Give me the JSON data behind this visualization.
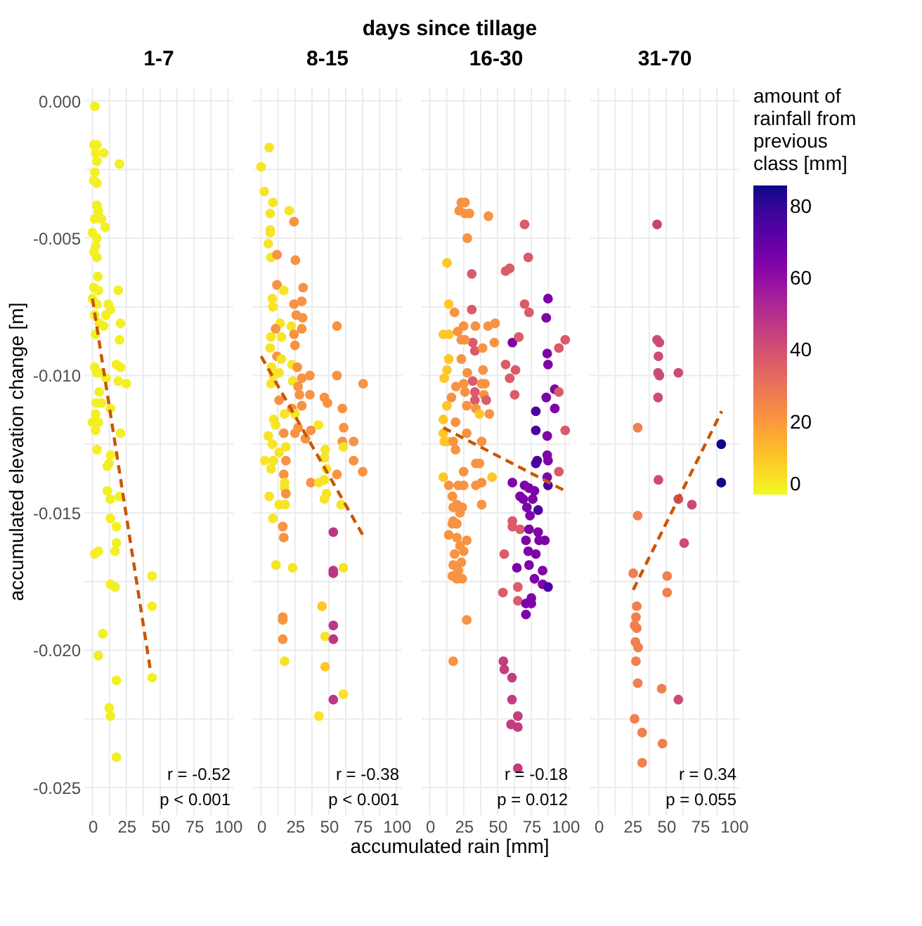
{
  "chart_data": [
    {
      "type": "scatter",
      "title": "1-7",
      "ylabel": "accumulated elevation change [m]",
      "xlabel": "accumulated rain [mm]",
      "annotations": [
        "days since tillage",
        "r = -0.52",
        "p < 0.001"
      ],
      "marker": "circle",
      "grid": true,
      "xlim": [
        -6,
        104
      ],
      "ylim": [
        -0.026,
        0.0005
      ],
      "xticks": [
        0,
        {
          "value": 12.5,
          "label": null
        },
        25,
        {
          "value": 37.5,
          "label": null
        },
        50,
        {
          "value": 62.5,
          "label": null
        },
        75,
        {
          "value": 87.5,
          "label": null
        },
        100
      ],
      "yticks": [
        {
          "value": 0,
          "label": "0.000"
        },
        {
          "value": -0.0025,
          "label": null
        },
        -0.005,
        {
          "value": -0.0075,
          "label": null
        },
        {
          "value": -0.01,
          "label": "-0.010"
        },
        {
          "value": -0.0125,
          "label": null
        },
        -0.015,
        {
          "value": -0.0175,
          "label": null
        },
        {
          "value": -0.02,
          "label": "-0.020"
        },
        {
          "value": -0.0225,
          "label": null
        },
        -0.025
      ],
      "series": [
        {
          "type": "scatter",
          "color": "#f3ef25",
          "x": [
            1.7,
            1,
            3.3,
            2.3,
            8.3,
            3.3,
            20,
            1.7,
            1,
            3.3,
            3.3,
            4.3,
            1.7,
            6.7,
            9.3,
            0,
            3.3,
            2.3,
            1,
            3.3,
            4,
            1,
            4.3,
            19,
            0,
            11.7,
            3.3,
            13.3,
            1.7,
            10,
            5,
            20.7,
            8.3,
            2.3,
            20,
            1.7,
            3.3,
            17.7,
            20.7,
            5,
            10,
            19,
            25,
            5,
            2.7,
            6.7,
            13.3,
            2.3,
            0,
            4.3,
            2.3,
            20.7,
            3.3,
            13.3,
            11,
            12.3,
            11,
            13.3,
            20,
            13.3,
            17.7,
            1.7,
            4.3,
            17.7,
            16.7,
            13.3,
            16.7,
            44,
            44,
            7.7,
            4.3,
            17.7,
            44,
            12.3,
            13.3,
            17.7
          ],
          "values": [
            -0.0002,
            -0.0016,
            -0.0016,
            -0.0019,
            -0.0019,
            -0.0022,
            -0.0023,
            -0.0026,
            -0.0029,
            -0.003,
            -0.0038,
            -0.004,
            -0.0043,
            -0.0043,
            -0.0046,
            -0.0048,
            -0.005,
            -0.0053,
            -0.0055,
            -0.0057,
            -0.0064,
            -0.0068,
            -0.0069,
            -0.0069,
            -0.0072,
            -0.0074,
            -0.0074,
            -0.0076,
            -0.0078,
            -0.0078,
            -0.0081,
            -0.0081,
            -0.0082,
            -0.0085,
            -0.0087,
            -0.0097,
            -0.0099,
            -0.0096,
            -0.0097,
            -0.0099,
            -0.0101,
            -0.0102,
            -0.0103,
            -0.0106,
            -0.011,
            -0.011,
            -0.0112,
            -0.0114,
            -0.0117,
            -0.0117,
            -0.012,
            -0.0121,
            -0.0127,
            -0.0129,
            -0.0133,
            -0.0132,
            -0.0142,
            -0.0145,
            -0.0144,
            -0.0152,
            -0.0155,
            -0.0165,
            -0.0164,
            -0.0161,
            -0.0164,
            -0.0176,
            -0.0177,
            -0.0173,
            -0.0184,
            -0.0194,
            -0.0202,
            -0.0211,
            -0.021,
            -0.0221,
            -0.0224,
            -0.0239
          ]
        },
        {
          "type": "line",
          "color": "#cc5500",
          "line_style": "dashed",
          "marker": "none",
          "x": [
            0,
            42.7
          ],
          "values": [
            -0.0072,
            -0.0207
          ]
        }
      ]
    },
    {
      "type": "scatter",
      "title": "8-15",
      "annotations": [
        "r = -0.38",
        "p < 0.001"
      ],
      "marker": "circle",
      "grid": true,
      "tick_labels": "x",
      "xlim": [
        -6,
        104
      ],
      "ylim": [
        -0.026,
        0.0005
      ],
      "xticks": [
        0,
        {
          "value": 12.5,
          "label": null
        },
        25,
        {
          "value": 37.5,
          "label": null
        },
        50,
        {
          "value": 62.5,
          "label": null
        },
        75,
        {
          "value": 87.5,
          "label": null
        },
        100
      ],
      "yticks": [
        0,
        -0.0025,
        -0.005,
        -0.0075,
        -0.01,
        -0.0125,
        -0.015,
        -0.0175,
        -0.02,
        -0.0225,
        -0.025
      ],
      "series": [
        {
          "type": "scatter",
          "x": [
            6,
            0,
            2.3,
            8.7,
            6.7,
            20.7,
            24.3,
            6.7,
            6.7,
            5.3,
            7.3,
            11.7,
            25.3,
            11.7,
            16.7,
            31,
            8.3,
            8.7,
            24.3,
            30,
            26,
            30.7,
            14,
            22.3,
            30,
            10.7,
            7.3,
            15,
            24.3,
            25,
            6.7,
            11.7,
            15,
            7.7,
            22.7,
            26.7,
            30,
            36,
            56,
            75.3,
            9,
            13.3,
            23.3,
            7.3,
            27.3,
            28.3,
            36,
            46.7,
            49,
            13.3,
            22.7,
            30,
            56,
            60,
            9.3,
            17.3,
            25,
            42.3,
            27.3,
            61,
            36.7,
            5.3,
            10.7,
            16.7,
            25,
            32.7,
            60,
            68.3,
            8.3,
            13.3,
            18.3,
            60.7,
            47.3,
            2.7,
            9,
            18.3,
            46.7,
            68.3,
            7.3,
            16.7,
            48.3,
            56,
            75,
            17.3,
            36.7,
            42.7,
            46.7,
            17.3,
            48.3,
            46.7,
            18.3,
            6,
            13.3,
            17.7,
            59,
            16,
            8.7,
            53.3,
            16.7,
            11,
            23.3,
            53.3,
            53.3,
            60.7,
            45,
            16,
            16,
            53.3,
            47.3,
            53.3,
            16,
            17.3,
            47.3,
            60.7,
            53.3,
            42.7
          ],
          "values": [
            -0.0017,
            -0.0024,
            -0.0033,
            -0.0037,
            -0.0041,
            -0.004,
            -0.0044,
            -0.0047,
            -0.0048,
            -0.0052,
            -0.0057,
            -0.0056,
            -0.0058,
            -0.0067,
            -0.0069,
            -0.0068,
            -0.0072,
            -0.0075,
            -0.0074,
            -0.0073,
            -0.0078,
            -0.0079,
            -0.0081,
            -0.0082,
            -0.0083,
            -0.0083,
            -0.0086,
            -0.0086,
            -0.0085,
            -0.0089,
            -0.009,
            -0.0093,
            -0.0094,
            -0.0097,
            -0.0096,
            -0.0097,
            -0.0101,
            -0.01,
            -0.01,
            -0.0103,
            -0.01,
            -0.0099,
            -0.0102,
            -0.0103,
            -0.0104,
            -0.0107,
            -0.0107,
            -0.0108,
            -0.011,
            -0.0109,
            -0.0112,
            -0.0111,
            -0.0082,
            -0.0112,
            -0.0116,
            -0.0114,
            -0.0114,
            -0.0118,
            -0.0119,
            -0.0119,
            -0.012,
            -0.0122,
            -0.0118,
            -0.0121,
            -0.0121,
            -0.0123,
            -0.0124,
            -0.0124,
            -0.0125,
            -0.0128,
            -0.0126,
            -0.0126,
            -0.0127,
            -0.0131,
            -0.0131,
            -0.0131,
            -0.013,
            -0.0131,
            -0.0134,
            -0.0136,
            -0.0134,
            -0.0136,
            -0.0135,
            -0.0139,
            -0.0139,
            -0.0139,
            -0.0138,
            -0.0141,
            -0.0143,
            -0.0145,
            -0.0143,
            -0.0144,
            -0.0147,
            -0.0147,
            -0.0147,
            -0.0155,
            -0.0152,
            -0.0157,
            -0.0159,
            -0.0169,
            -0.017,
            -0.0171,
            -0.0172,
            -0.017,
            -0.0184,
            -0.0188,
            -0.0189,
            -0.0191,
            -0.0195,
            -0.0196,
            -0.0196,
            -0.0204,
            -0.0206,
            -0.0216,
            -0.0218,
            -0.0224
          ],
          "colors": [
            "#f7e426",
            "#f7e426",
            "#f7e426",
            "#f7e426",
            "#f7e426",
            "#f7e426",
            "#f79342",
            "#f7e426",
            "#f7e426",
            "#f7e426",
            "#f7e426",
            "#f79342",
            "#f79342",
            "#f79342",
            "#f7e426",
            "#f79342",
            "#f7e426",
            "#f7e426",
            "#f79342",
            "#f79342",
            "#f79342",
            "#f79342",
            "#f7e426",
            "#f7e426",
            "#f79342",
            "#f79342",
            "#f7e426",
            "#f7e426",
            "#f79342",
            "#f79342",
            "#f7e426",
            "#f79342",
            "#f7e426",
            "#f7e426",
            "#f7e426",
            "#f79342",
            "#f79342",
            "#f79342",
            "#f79342",
            "#f79342",
            "#f7e426",
            "#f7e426",
            "#f7e426",
            "#f7e426",
            "#f79342",
            "#f79342",
            "#f79342",
            "#f79342",
            "#f79342",
            "#f79342",
            "#f79342",
            "#f79342",
            "#f79342",
            "#f79342",
            "#f7e426",
            "#f7e426",
            "#f7e426",
            "#f7e426",
            "#f79342",
            "#f79342",
            "#f79342",
            "#f7e426",
            "#f7e426",
            "#f79342",
            "#f79342",
            "#f79342",
            "#f79342",
            "#f79342",
            "#f7e426",
            "#f7e426",
            "#f7e426",
            "#f7e426",
            "#f7e426",
            "#f7e426",
            "#f7e426",
            "#f79342",
            "#f7e426",
            "#f79342",
            "#f7e426",
            "#f79342",
            "#f7e426",
            "#f79342",
            "#f79342",
            "#f7e426",
            "#f79342",
            "#f7e426",
            "#f7e426",
            "#f7e426",
            "#f7e426",
            "#f7e426",
            "#f79342",
            "#f7e426",
            "#f7e426",
            "#f7e426",
            "#f7e426",
            "#f79342",
            "#f7e426",
            "#bc3686",
            "#f79342",
            "#f7e426",
            "#f7e426",
            "#bc3686",
            "#bc3686",
            "#f7e426",
            "#fdc727",
            "#f79342",
            "#f79342",
            "#bc3686",
            "#f7e426",
            "#bc3686",
            "#f79342",
            "#f7e426",
            "#fdc727",
            "#f7e426",
            "#bc3686",
            "#f7e426"
          ]
        },
        {
          "type": "line",
          "color": "#cc5500",
          "line_style": "dashed",
          "marker": "none",
          "x": [
            0,
            75
          ],
          "values": [
            -0.0093,
            -0.0158
          ]
        }
      ]
    },
    {
      "type": "scatter",
      "title": "16-30",
      "annotations": [
        "r = -0.18",
        "p = 0.012"
      ],
      "marker": "circle",
      "grid": true,
      "tick_labels": "x",
      "xlim": [
        -6,
        104
      ],
      "ylim": [
        -0.026,
        0.0005
      ],
      "xticks": [
        0,
        {
          "value": 12.5,
          "label": null
        },
        25,
        {
          "value": 37.5,
          "label": null
        },
        50,
        {
          "value": 62.5,
          "label": null
        },
        75,
        {
          "value": 87.5,
          "label": null
        },
        100
      ],
      "yticks": [
        0,
        -0.0025,
        -0.005,
        -0.0075,
        -0.01,
        -0.0125,
        -0.015,
        -0.0175,
        -0.02,
        -0.0225,
        -0.025
      ],
      "series": [
        {
          "type": "scatter",
          "x": [
            23.3,
            26,
            21.7,
            26,
            29.3,
            43.3,
            70,
            27.7,
            12.7,
            72.7,
            31,
            56,
            59,
            14,
            70,
            18.3,
            73.3,
            87.3,
            86,
            31,
            10,
            14.3,
            25,
            33.7,
            43,
            48.3,
            20.7,
            23.3,
            31.7,
            26,
            61,
            65.7,
            47.7,
            33.3,
            39,
            100,
            95.3,
            86.7,
            87.3,
            14,
            23.3,
            12.7,
            10.7,
            27.7,
            39.3,
            56,
            63.3,
            59,
            19.3,
            25,
            31.7,
            38.3,
            40.7,
            33.3,
            26,
            40,
            16,
            33.3,
            41.7,
            62.7,
            86,
            92.3,
            95.3,
            12.7,
            27.3,
            34,
            44,
            36.7,
            92.3,
            78.3,
            10,
            19,
            78.3,
            86.7,
            100,
            10,
            10.7,
            13.3,
            17.3,
            27.3,
            38.3,
            19,
            86.7,
            79.3,
            78.3,
            87.3,
            36.7,
            34,
            10,
            46,
            25,
            95.3,
            86.7,
            61,
            14,
            21,
            25,
            34,
            38.3,
            70,
            73.3,
            77.3,
            87.3,
            66.7,
            69,
            76,
            16.7,
            20,
            17.3,
            24,
            38.3,
            22.3,
            71.7,
            80,
            74,
            17.3,
            20,
            16.7,
            61,
            61,
            66.7,
            73.3,
            80,
            14,
            20,
            27.3,
            22.3,
            25,
            18.3,
            71,
            80.7,
            85,
            72.7,
            78.3,
            55,
            23.3,
            17.3,
            21,
            64.3,
            83.3,
            73.3,
            16.7,
            20,
            24,
            77.3,
            54,
            65,
            83.3,
            87.3,
            65,
            71,
            75,
            75,
            71,
            27.3,
            17.3,
            54.3,
            55,
            60.7,
            60.7,
            65,
            60,
            65,
            65
          ],
          "values": [
            -0.0037,
            -0.0037,
            -0.004,
            -0.0041,
            -0.0041,
            -0.0042,
            -0.0045,
            -0.005,
            -0.0059,
            -0.0057,
            -0.0063,
            -0.0062,
            -0.0061,
            -0.0074,
            -0.0074,
            -0.0077,
            -0.0077,
            -0.0072,
            -0.0079,
            -0.0076,
            -0.0085,
            -0.0085,
            -0.0082,
            -0.0082,
            -0.0082,
            -0.0081,
            -0.0084,
            -0.0087,
            -0.0088,
            -0.0087,
            -0.0088,
            -0.0086,
            -0.0088,
            -0.0091,
            -0.009,
            -0.0087,
            -0.009,
            -0.0092,
            -0.0096,
            -0.0094,
            -0.0094,
            -0.0098,
            -0.0101,
            -0.0099,
            -0.0098,
            -0.0096,
            -0.0098,
            -0.0101,
            -0.0104,
            -0.0103,
            -0.0102,
            -0.0103,
            -0.0103,
            -0.0106,
            -0.0106,
            -0.0107,
            -0.0108,
            -0.0109,
            -0.0109,
            -0.0107,
            -0.0108,
            -0.0105,
            -0.0106,
            -0.0111,
            -0.0111,
            -0.0112,
            -0.0114,
            -0.0114,
            -0.0112,
            -0.0113,
            -0.0116,
            -0.0117,
            -0.012,
            -0.0122,
            -0.012,
            -0.0121,
            -0.0124,
            -0.0124,
            -0.0124,
            -0.0121,
            -0.0124,
            -0.0127,
            -0.0129,
            -0.0131,
            -0.0132,
            -0.0131,
            -0.0132,
            -0.0132,
            -0.0137,
            -0.0137,
            -0.0135,
            -0.0135,
            -0.0137,
            -0.0139,
            -0.014,
            -0.014,
            -0.014,
            -0.014,
            -0.0139,
            -0.014,
            -0.0141,
            -0.0142,
            -0.014,
            -0.0144,
            -0.0145,
            -0.0145,
            -0.0144,
            -0.0147,
            -0.0148,
            -0.0148,
            -0.0147,
            -0.015,
            -0.0148,
            -0.0149,
            -0.0151,
            -0.0153,
            -0.0154,
            -0.0154,
            -0.0153,
            -0.0155,
            -0.0156,
            -0.0156,
            -0.0157,
            -0.0158,
            -0.0159,
            -0.016,
            -0.0162,
            -0.0164,
            -0.0165,
            -0.016,
            -0.016,
            -0.016,
            -0.0164,
            -0.0165,
            -0.0165,
            -0.0168,
            -0.0169,
            -0.0171,
            -0.017,
            -0.0171,
            -0.0169,
            -0.0173,
            -0.0174,
            -0.0174,
            -0.0174,
            -0.0179,
            -0.0177,
            -0.0176,
            -0.0177,
            -0.0182,
            -0.0183,
            -0.0183,
            -0.0181,
            -0.0187,
            -0.0189,
            -0.0204,
            -0.0204,
            -0.0207,
            -0.021,
            -0.0218,
            -0.0224,
            -0.0227,
            -0.0228,
            -0.0243
          ],
          "colors": [
            "#f79342",
            "#f79342",
            "#f79342",
            "#f79342",
            "#f79342",
            "#f79342",
            "#da5b69",
            "#f79342",
            "#fdc727",
            "#da5b69",
            "#da5b69",
            "#da5b69",
            "#da5b69",
            "#fdc727",
            "#da5b69",
            "#f79342",
            "#da5b69",
            "#7e03a8",
            "#7e03a8",
            "#da5b69",
            "#fdc727",
            "#fdc727",
            "#f79342",
            "#f79342",
            "#f79342",
            "#f79342",
            "#f79342",
            "#f79342",
            "#da5b69",
            "#f79342",
            "#7e03a8",
            "#da5b69",
            "#f79342",
            "#da5b69",
            "#f79342",
            "#da5b69",
            "#da5b69",
            "#7e03a8",
            "#7e03a8",
            "#fdc727",
            "#f79342",
            "#fdc727",
            "#fdc727",
            "#f79342",
            "#f79342",
            "#da5b69",
            "#da5b69",
            "#da5b69",
            "#f79342",
            "#f79342",
            "#da5b69",
            "#f79342",
            "#f79342",
            "#da5b69",
            "#f79342",
            "#f79342",
            "#f79342",
            "#da5b69",
            "#da5b69",
            "#da5b69",
            "#7e03a8",
            "#7e03a8",
            "#da5b69",
            "#fdc727",
            "#f79342",
            "#f79342",
            "#f79342",
            "#fdc727",
            "#7e03a8",
            "#4c02a1",
            "#fdc727",
            "#f79342",
            "#4c02a1",
            "#7e03a8",
            "#da5b69",
            "#fdc727",
            "#fdc727",
            "#fdc727",
            "#f79342",
            "#f79342",
            "#f79342",
            "#f79342",
            "#7e03a8",
            "#4c02a1",
            "#4c02a1",
            "#7e03a8",
            "#f79342",
            "#f79342",
            "#fdc727",
            "#fdc727",
            "#f79342",
            "#da5b69",
            "#7e03a8",
            "#7e03a8",
            "#f79342",
            "#f79342",
            "#f79342",
            "#f79342",
            "#f79342",
            "#7e03a8",
            "#7e03a8",
            "#7e03a8",
            "#4c02a1",
            "#7e03a8",
            "#7e03a8",
            "#7e03a8",
            "#f79342",
            "#f79342",
            "#f79342",
            "#f79342",
            "#f79342",
            "#f79342",
            "#7e03a8",
            "#4c02a1",
            "#7e03a8",
            "#f79342",
            "#f79342",
            "#f79342",
            "#da5b69",
            "#da5b69",
            "#da5b69",
            "#7e03a8",
            "#7e03a8",
            "#f79342",
            "#f79342",
            "#f79342",
            "#f79342",
            "#f79342",
            "#f79342",
            "#7e03a8",
            "#7e03a8",
            "#7e03a8",
            "#7e03a8",
            "#7e03a8",
            "#da5b69",
            "#f79342",
            "#f79342",
            "#f79342",
            "#7e03a8",
            "#7e03a8",
            "#7e03a8",
            "#f79342",
            "#f79342",
            "#f79342",
            "#7e03a8",
            "#da5b69",
            "#da5b69",
            "#7e03a8",
            "#4c02a1",
            "#da5b69",
            "#7e03a8",
            "#7e03a8",
            "#7e03a8",
            "#7e03a8",
            "#f79342",
            "#f79342",
            "#c43e7f",
            "#c43e7f",
            "#c43e7f",
            "#c43e7f",
            "#c43e7f",
            "#c43e7f",
            "#c43e7f",
            "#c43e7f"
          ]
        },
        {
          "type": "line",
          "color": "#cc5500",
          "line_style": "dashed",
          "marker": "none",
          "x": [
            10,
            100
          ],
          "values": [
            -0.0119,
            -0.0142
          ]
        }
      ]
    },
    {
      "type": "scatter",
      "title": "31-70",
      "annotations": [
        "r = 0.34",
        "p = 0.055"
      ],
      "marker": "circle",
      "grid": true,
      "tick_labels": "x",
      "clabel": "amount of rainfall from previous class [mm]",
      "clim": [
        0,
        86
      ],
      "cticks": [
        0,
        20,
        40,
        60,
        80
      ],
      "xlim": [
        -6,
        104
      ],
      "ylim": [
        -0.026,
        0.0005
      ],
      "xticks": [
        0,
        {
          "value": 12.5,
          "label": null
        },
        25,
        {
          "value": 37.5,
          "label": null
        },
        50,
        {
          "value": 62.5,
          "label": null
        },
        75,
        {
          "value": 87.5,
          "label": null
        },
        100
      ],
      "yticks": [
        0,
        -0.0025,
        -0.005,
        -0.0075,
        -0.01,
        -0.0125,
        -0.015,
        -0.0175,
        -0.02,
        -0.0225,
        -0.025
      ],
      "series": [
        {
          "type": "scatter",
          "x": [
            43.3,
            43.3,
            45,
            44.3,
            44,
            45,
            59,
            44,
            29,
            90.7,
            90.7,
            44.3,
            59,
            69,
            29,
            63.3,
            25.7,
            50.7,
            50.7,
            28.3,
            27.7,
            26.7,
            28.3,
            27.3,
            29.3,
            27.7,
            29,
            46.7,
            59,
            26.7,
            32.3,
            47.3,
            32.3
          ],
          "values": [
            -0.0045,
            -0.0087,
            -0.0088,
            -0.0093,
            -0.0099,
            -0.01,
            -0.0099,
            -0.0108,
            -0.0119,
            -0.0125,
            -0.0139,
            -0.0138,
            -0.0145,
            -0.0147,
            -0.0151,
            -0.0161,
            -0.0172,
            -0.0173,
            -0.0179,
            -0.0184,
            -0.0188,
            -0.0191,
            -0.0192,
            -0.0197,
            -0.0199,
            -0.0204,
            -0.0212,
            -0.0214,
            -0.0218,
            -0.0225,
            -0.023,
            -0.0234,
            -0.0241
          ],
          "colors": [
            "#c6417d",
            "#ce4a76",
            "#ce4a76",
            "#ce4a76",
            "#ce4a76",
            "#ce4a76",
            "#ce4a76",
            "#ce4a76",
            "#f0804e",
            "#10078a",
            "#10078a",
            "#ce4a76",
            "#ce4a76",
            "#ce4a76",
            "#f0804e",
            "#ce4a76",
            "#f0804e",
            "#f0804e",
            "#f0804e",
            "#f0804e",
            "#f0804e",
            "#f0804e",
            "#f0804e",
            "#f0804e",
            "#f0804e",
            "#f0804e",
            "#f0804e",
            "#f0804e",
            "#ce4a76",
            "#f0804e",
            "#f0804e",
            "#f0804e",
            "#f0804e"
          ]
        },
        {
          "type": "line",
          "color": "#cc5500",
          "line_style": "dashed",
          "marker": "none",
          "x": [
            25.7,
            91
          ],
          "values": [
            -0.0178,
            -0.0113
          ]
        }
      ]
    }
  ]
}
